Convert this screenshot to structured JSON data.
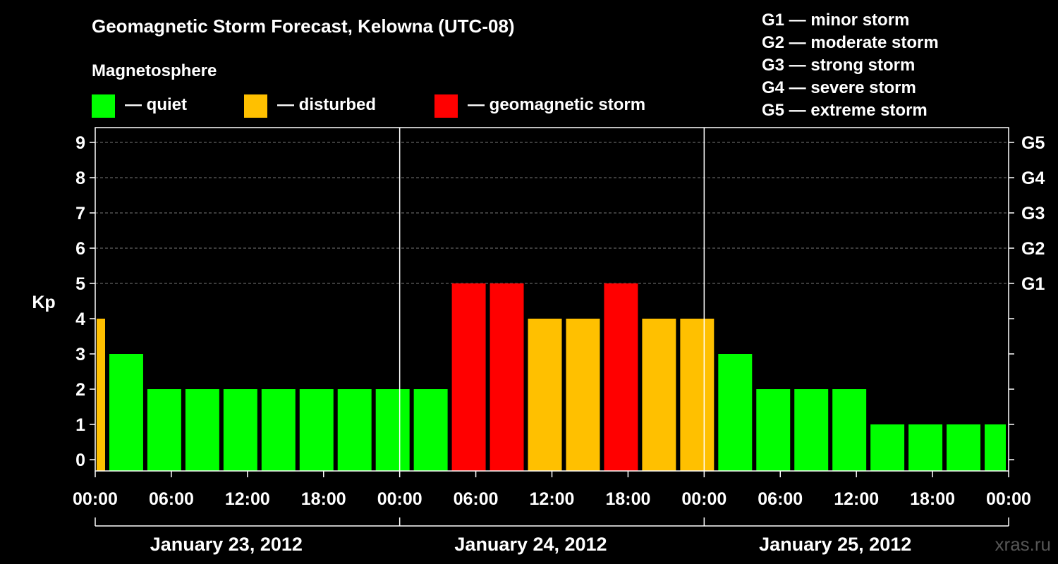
{
  "title": "Geomagnetic Storm Forecast, Kelowna (UTC-08)",
  "magnetosphere": {
    "heading": "Magnetosphere",
    "legend": [
      {
        "label": "— quiet",
        "color": "#00FF00"
      },
      {
        "label": "— disturbed",
        "color": "#FFC000"
      },
      {
        "label": "— geomagnetic storm",
        "color": "#FF0000"
      }
    ]
  },
  "storm_scale": [
    {
      "label": "G1 — minor storm"
    },
    {
      "label": "G2 — moderate storm"
    },
    {
      "label": "G3 — strong storm"
    },
    {
      "label": "G4 — severe storm"
    },
    {
      "label": "G5 — extreme storm"
    }
  ],
  "watermark": "xras.ru",
  "chart_data": {
    "type": "bar",
    "ylabel": "Kp",
    "ylim": [
      0,
      9
    ],
    "y_ticks": [
      "0",
      "1",
      "2",
      "3",
      "4",
      "5",
      "6",
      "7",
      "8",
      "9"
    ],
    "right_ticks": [
      {
        "kp": 5,
        "label": "G1"
      },
      {
        "kp": 6,
        "label": "G2"
      },
      {
        "kp": 7,
        "label": "G3"
      },
      {
        "kp": 8,
        "label": "G4"
      },
      {
        "kp": 9,
        "label": "G5"
      }
    ],
    "x_hours": [
      0,
      72
    ],
    "x_tick_labels": [
      "00:00",
      "06:00",
      "12:00",
      "18:00",
      "00:00",
      "06:00",
      "12:00",
      "18:00",
      "00:00",
      "06:00",
      "12:00",
      "18:00",
      "00:00"
    ],
    "dates": [
      "January 23, 2012",
      "January 24, 2012",
      "January 25, 2012"
    ],
    "grid": true,
    "status_colors": {
      "quiet": "#00FF00",
      "disturbed": "#FFC000",
      "storm": "#FF0000"
    },
    "bars": [
      {
        "start_hour": 0,
        "end_hour": 1,
        "kp": 4,
        "status": "disturbed"
      },
      {
        "start_hour": 1,
        "end_hour": 4,
        "kp": 3,
        "status": "quiet"
      },
      {
        "start_hour": 4,
        "end_hour": 7,
        "kp": 2,
        "status": "quiet"
      },
      {
        "start_hour": 7,
        "end_hour": 10,
        "kp": 2,
        "status": "quiet"
      },
      {
        "start_hour": 10,
        "end_hour": 13,
        "kp": 2,
        "status": "quiet"
      },
      {
        "start_hour": 13,
        "end_hour": 16,
        "kp": 2,
        "status": "quiet"
      },
      {
        "start_hour": 16,
        "end_hour": 19,
        "kp": 2,
        "status": "quiet"
      },
      {
        "start_hour": 19,
        "end_hour": 22,
        "kp": 2,
        "status": "quiet"
      },
      {
        "start_hour": 22,
        "end_hour": 25,
        "kp": 2,
        "status": "quiet"
      },
      {
        "start_hour": 25,
        "end_hour": 28,
        "kp": 2,
        "status": "quiet"
      },
      {
        "start_hour": 28,
        "end_hour": 31,
        "kp": 5,
        "status": "storm"
      },
      {
        "start_hour": 31,
        "end_hour": 34,
        "kp": 5,
        "status": "storm"
      },
      {
        "start_hour": 34,
        "end_hour": 37,
        "kp": 4,
        "status": "disturbed"
      },
      {
        "start_hour": 37,
        "end_hour": 40,
        "kp": 4,
        "status": "disturbed"
      },
      {
        "start_hour": 40,
        "end_hour": 43,
        "kp": 5,
        "status": "storm"
      },
      {
        "start_hour": 43,
        "end_hour": 46,
        "kp": 4,
        "status": "disturbed"
      },
      {
        "start_hour": 46,
        "end_hour": 49,
        "kp": 4,
        "status": "disturbed"
      },
      {
        "start_hour": 49,
        "end_hour": 52,
        "kp": 3,
        "status": "quiet"
      },
      {
        "start_hour": 52,
        "end_hour": 55,
        "kp": 2,
        "status": "quiet"
      },
      {
        "start_hour": 55,
        "end_hour": 58,
        "kp": 2,
        "status": "quiet"
      },
      {
        "start_hour": 58,
        "end_hour": 61,
        "kp": 2,
        "status": "quiet"
      },
      {
        "start_hour": 61,
        "end_hour": 64,
        "kp": 1,
        "status": "quiet"
      },
      {
        "start_hour": 64,
        "end_hour": 67,
        "kp": 1,
        "status": "quiet"
      },
      {
        "start_hour": 67,
        "end_hour": 70,
        "kp": 1,
        "status": "quiet"
      },
      {
        "start_hour": 70,
        "end_hour": 72,
        "kp": 1,
        "status": "quiet"
      }
    ]
  }
}
